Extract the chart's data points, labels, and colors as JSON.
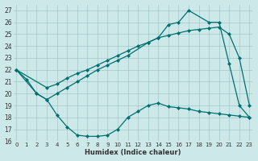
{
  "xlabel": "Humidex (Indice chaleur)",
  "x_ticks": [
    0,
    1,
    2,
    3,
    4,
    5,
    6,
    7,
    8,
    9,
    10,
    11,
    12,
    13,
    14,
    15,
    16,
    17,
    18,
    19,
    20,
    21,
    22,
    23
  ],
  "ylim": [
    16,
    27.5
  ],
  "xlim": [
    -0.3,
    23.3
  ],
  "y_ticks": [
    16,
    17,
    18,
    19,
    20,
    21,
    22,
    23,
    24,
    25,
    26,
    27
  ],
  "bg_color": "#cce8e8",
  "line_color": "#007070",
  "line1_x": [
    0,
    1,
    2,
    3,
    4,
    5,
    6,
    7,
    8,
    9,
    10,
    11,
    12,
    13,
    14,
    15,
    16,
    17,
    18,
    19,
    20,
    21,
    22,
    23
  ],
  "line1_y": [
    22.0,
    21.2,
    20.0,
    19.5,
    18.2,
    17.2,
    16.5,
    16.4,
    16.4,
    16.5,
    17.0,
    18.0,
    18.5,
    19.0,
    19.2,
    18.9,
    18.8,
    18.7,
    18.5,
    18.4,
    18.3,
    18.2,
    18.1,
    18.0
  ],
  "line2_x": [
    0,
    3,
    4,
    5,
    6,
    7,
    8,
    9,
    10,
    11,
    12,
    13,
    14,
    15,
    16,
    17,
    18,
    19,
    20,
    21,
    22,
    23
  ],
  "line2_y": [
    22.0,
    20.5,
    20.8,
    21.3,
    21.7,
    22.0,
    22.4,
    22.8,
    23.2,
    23.6,
    24.0,
    24.3,
    24.7,
    24.9,
    25.1,
    25.3,
    25.4,
    25.5,
    25.6,
    25.0,
    23.0,
    19.0
  ],
  "line3_x": [
    0,
    2,
    3,
    4,
    5,
    6,
    7,
    8,
    9,
    10,
    11,
    13,
    14,
    15,
    16,
    17,
    19,
    20,
    21,
    22,
    23
  ],
  "line3_y": [
    22.0,
    20.0,
    19.5,
    20.0,
    20.5,
    21.0,
    21.5,
    22.0,
    22.4,
    22.8,
    23.2,
    24.3,
    24.7,
    25.8,
    26.0,
    27.0,
    26.0,
    26.0,
    22.5,
    19.0,
    18.0
  ]
}
